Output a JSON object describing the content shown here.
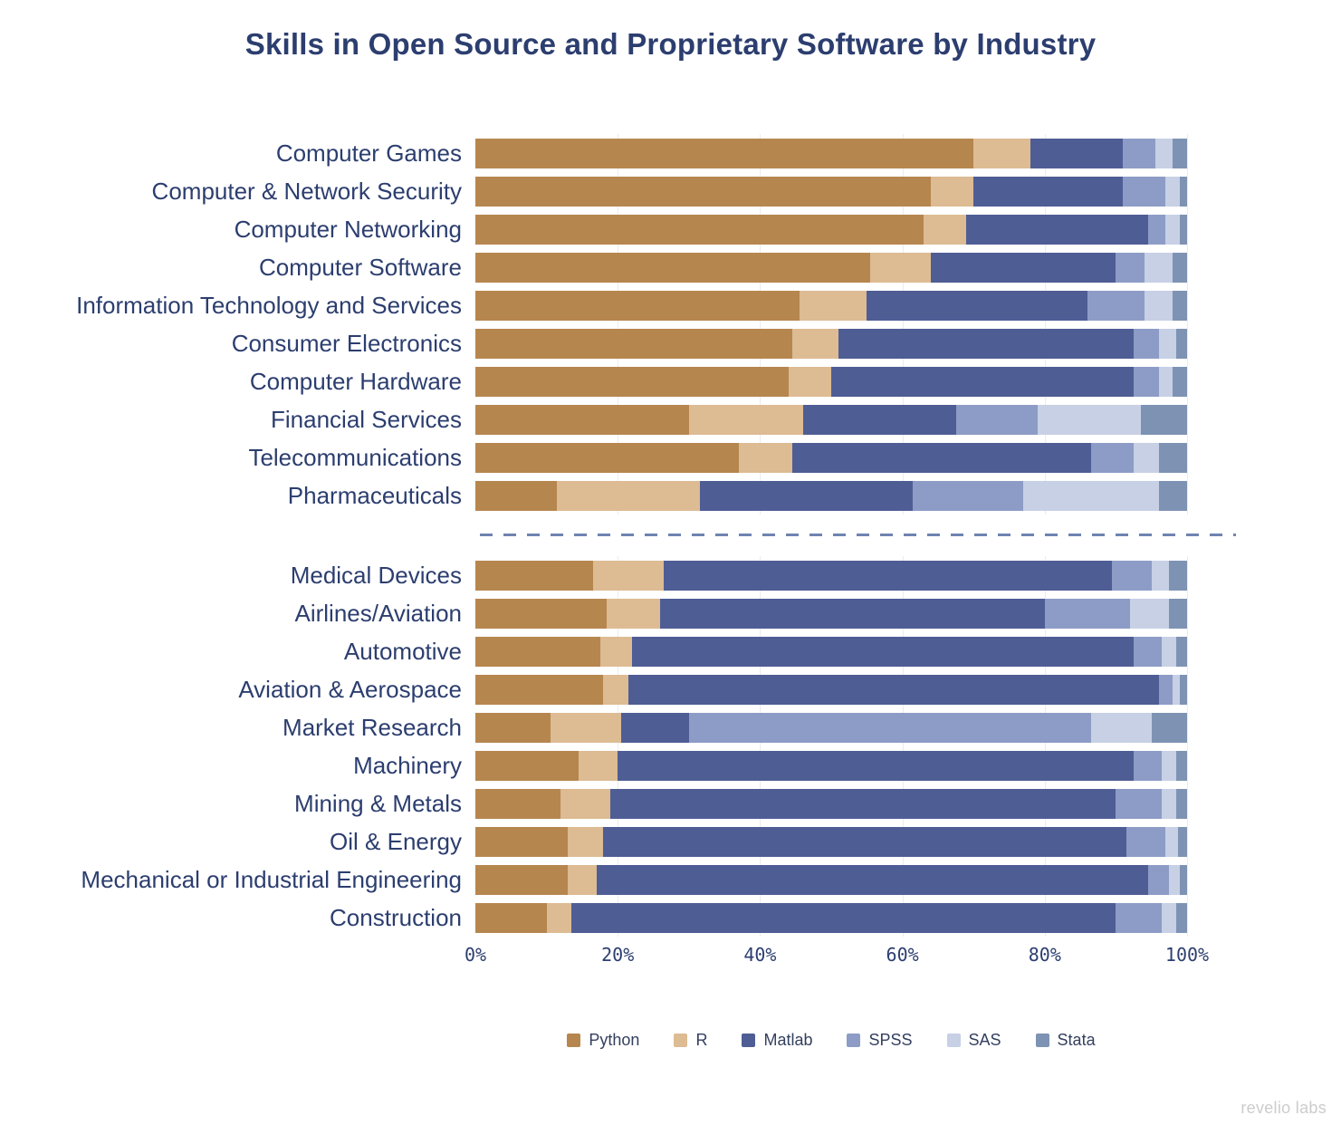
{
  "watermark": "revelio labs",
  "chart_data": {
    "type": "bar",
    "stacked": true,
    "orientation": "horizontal",
    "title": "Skills in Open Source and Proprietary Software by Industry",
    "xlim": [
      0,
      100
    ],
    "x_ticks": [
      "0%",
      "20%",
      "40%",
      "60%",
      "80%",
      "100%"
    ],
    "grid": "vertical-light",
    "legend_position": "bottom",
    "series": [
      {
        "name": "Python",
        "color": "#b6864f"
      },
      {
        "name": "R",
        "color": "#ddbb93"
      },
      {
        "name": "Matlab",
        "color": "#4f5d95"
      },
      {
        "name": "SPSS",
        "color": "#8d9cc6"
      },
      {
        "name": "SAS",
        "color": "#c7d0e5"
      },
      {
        "name": "Stata",
        "color": "#7e93b3"
      }
    ],
    "groups": [
      {
        "name": "open-source-leaning-industries",
        "rows": [
          {
            "label": "Computer Games",
            "values": [
              70,
              8,
              13,
              4.5,
              2.5,
              2
            ]
          },
          {
            "label": "Computer & Network Security",
            "values": [
              64,
              6,
              21,
              6,
              2,
              1
            ]
          },
          {
            "label": "Computer Networking",
            "values": [
              63,
              6,
              25.5,
              2.5,
              2,
              1
            ]
          },
          {
            "label": "Computer Software",
            "values": [
              55.5,
              8.5,
              26,
              4,
              4,
              2
            ]
          },
          {
            "label": "Information Technology and Services",
            "values": [
              45.5,
              9.5,
              31,
              8,
              4,
              2
            ]
          },
          {
            "label": "Consumer Electronics",
            "values": [
              44.5,
              6.5,
              41.5,
              3.5,
              2.5,
              1.5
            ]
          },
          {
            "label": "Computer Hardware",
            "values": [
              44,
              6,
              42.5,
              3.5,
              2,
              2
            ]
          },
          {
            "label": "Financial Services",
            "values": [
              30,
              16,
              21.5,
              11.5,
              14.5,
              6.5
            ]
          },
          {
            "label": "Telecommunications",
            "values": [
              37,
              7.5,
              42,
              6,
              3.5,
              4
            ]
          },
          {
            "label": "Pharmaceuticals",
            "values": [
              11.5,
              20,
              30,
              15.5,
              19,
              4
            ]
          }
        ]
      },
      {
        "name": "proprietary-leaning-industries",
        "rows": [
          {
            "label": "Medical Devices",
            "values": [
              16.5,
              10,
              63,
              5.5,
              2.5,
              2.5
            ]
          },
          {
            "label": "Airlines/Aviation",
            "values": [
              18.5,
              7.5,
              54,
              12,
              5.5,
              2.5
            ]
          },
          {
            "label": "Automotive",
            "values": [
              17.5,
              4.5,
              70.5,
              4,
              2,
              1.5
            ]
          },
          {
            "label": "Aviation & Aerospace",
            "values": [
              18,
              3.5,
              74.5,
              2,
              1,
              1
            ]
          },
          {
            "label": "Market Research",
            "values": [
              10.5,
              10,
              9.5,
              56.5,
              8.5,
              5
            ]
          },
          {
            "label": "Machinery",
            "values": [
              14.5,
              5.5,
              72.5,
              4,
              2,
              1.5
            ]
          },
          {
            "label": "Mining & Metals",
            "values": [
              12,
              7,
              71,
              6.5,
              2,
              1.5
            ]
          },
          {
            "label": "Oil & Energy",
            "values": [
              13,
              5,
              73.5,
              5.5,
              1.7,
              1.3
            ]
          },
          {
            "label": "Mechanical or Industrial Engineering",
            "values": [
              13,
              4,
              77.5,
              3,
              1.5,
              1
            ]
          },
          {
            "label": "Construction",
            "values": [
              10,
              3.5,
              76.5,
              6.5,
              2,
              1.5
            ]
          }
        ]
      }
    ]
  }
}
